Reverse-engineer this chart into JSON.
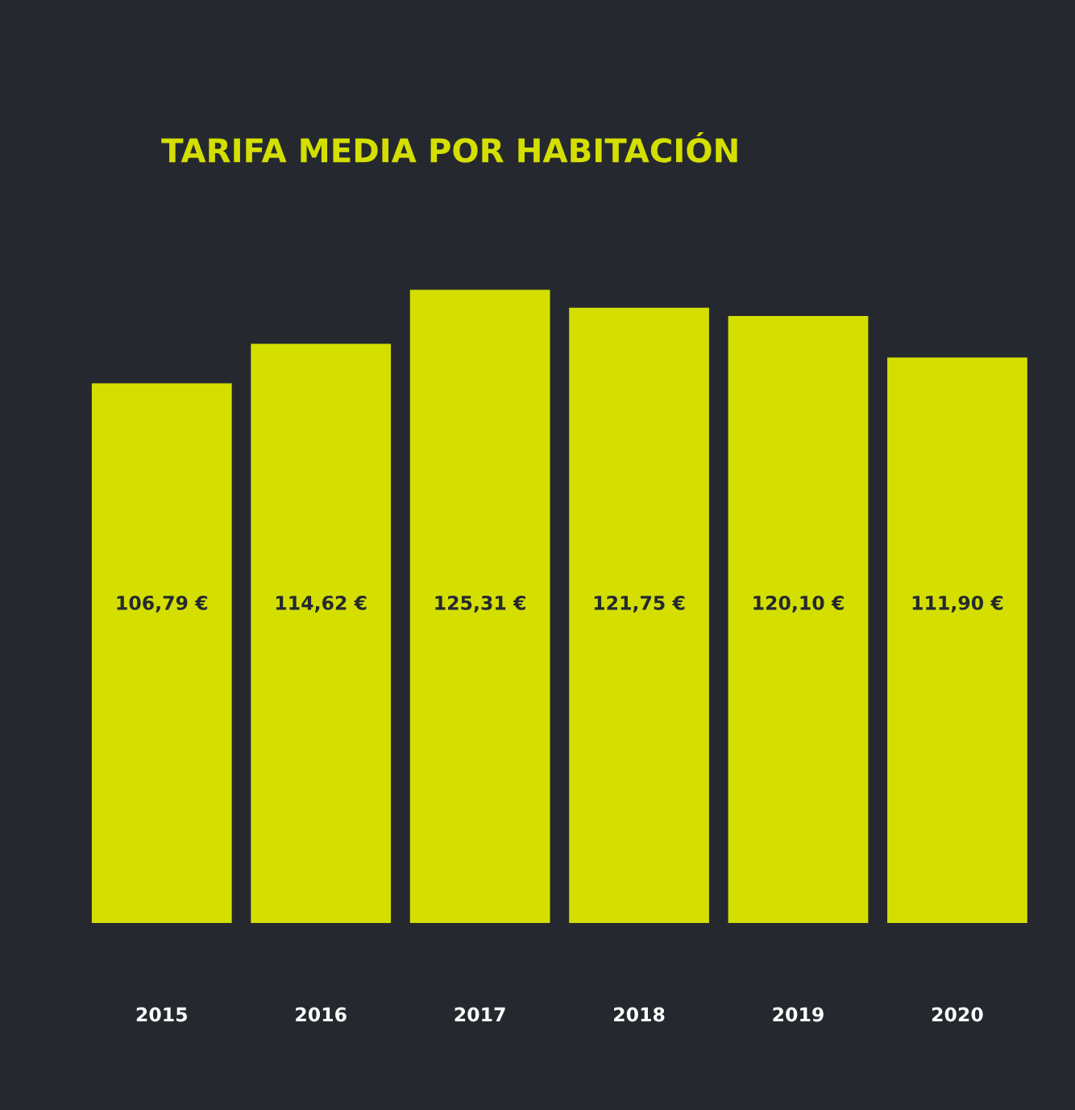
{
  "chart_data": {
    "type": "bar",
    "title": "TARIFA MEDIA POR HABITACIÓN",
    "categories": [
      "2015",
      "2016",
      "2017",
      "2018",
      "2019",
      "2020"
    ],
    "values": [
      106.79,
      114.62,
      125.31,
      121.75,
      120.1,
      111.9
    ],
    "value_labels": [
      "106,79 €",
      "114,62 €",
      "125,31 €",
      "121,75 €",
      "120,10 €",
      "111,90 €"
    ],
    "color": "#d4df00",
    "tick_labels": "x",
    "grid": false
  }
}
